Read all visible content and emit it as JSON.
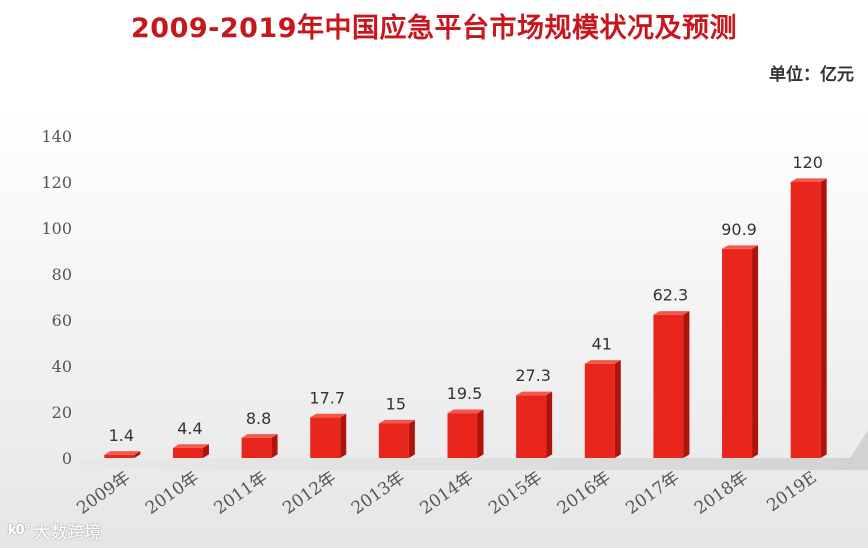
{
  "chart_data": {
    "type": "bar",
    "title": "2009-2019年中国应急平台市场规模状况及预测",
    "unit_label": "单位：亿元",
    "categories": [
      "2009年",
      "2010年",
      "2011年",
      "2012年",
      "2013年",
      "2014年",
      "2015年",
      "2016年",
      "2017年",
      "2018年",
      "2019E"
    ],
    "values": [
      1.4,
      4.4,
      8.8,
      17.7,
      15,
      19.5,
      27.3,
      41,
      62.3,
      90.9,
      120
    ],
    "value_labels": [
      "1.4",
      "4.4",
      "8.8",
      "17.7",
      "15",
      "19.5",
      "27.3",
      "41",
      "62.3",
      "90.9",
      "120"
    ],
    "ylim": [
      0,
      140
    ],
    "yticks": [
      "0",
      "20",
      "40",
      "60",
      "80",
      "100",
      "120",
      "140"
    ],
    "grid": false,
    "colors": {
      "bar_front": "#e8261c",
      "bar_side": "#b0120c",
      "bar_top": "#f4584c",
      "title": "#c8161d",
      "axis_text": "#555555",
      "background_fade": "#e9e9e9"
    }
  },
  "watermark": {
    "logo_text": "k0°",
    "text": "大数跨境"
  }
}
